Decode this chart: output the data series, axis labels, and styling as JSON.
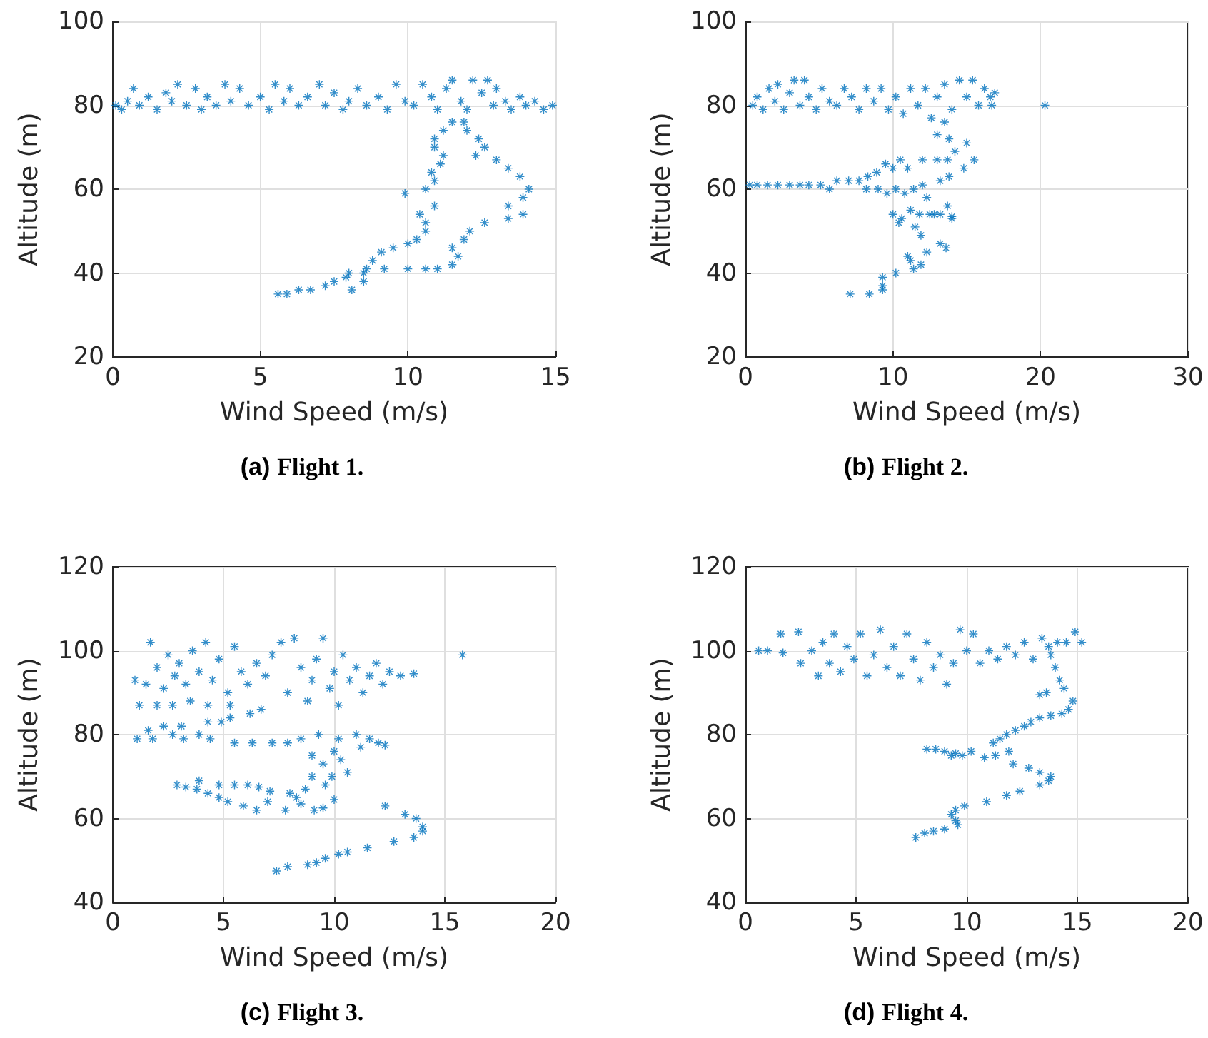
{
  "chart_data": [
    {
      "type": "scatter",
      "title": "(a) Flight 1.",
      "xlabel": "Wind Speed (m/s)",
      "ylabel": "Altitude (m)",
      "xlim": [
        0,
        15
      ],
      "xticks": [
        0,
        5,
        10,
        15
      ],
      "ylim": [
        20,
        100
      ],
      "yticks": [
        20,
        40,
        60,
        80,
        100
      ],
      "grid": true,
      "marker": "star",
      "series": [
        {
          "color": "#0072bd",
          "x": [
            0.1,
            0.3,
            0.5,
            0.7,
            0.9,
            1.2,
            1.5,
            1.8,
            2.0,
            2.2,
            2.5,
            2.8,
            3.0,
            3.2,
            3.5,
            3.8,
            4.0,
            4.3,
            4.6,
            5.0,
            5.3,
            5.5,
            5.8,
            6.0,
            6.3,
            6.6,
            7.0,
            7.2,
            7.5,
            7.8,
            8.0,
            8.3,
            8.6,
            9.0,
            9.3,
            9.6,
            9.9,
            10.2,
            10.5,
            10.8,
            11.0,
            11.3,
            11.5,
            11.8,
            12.0,
            12.2,
            12.5,
            12.7,
            12.9,
            13.0,
            13.3,
            13.5,
            13.8,
            14.0,
            14.3,
            14.6,
            14.9,
            11.9,
            12.0,
            12.4,
            12.6,
            12.3,
            13.0,
            13.4,
            13.8,
            14.1,
            13.9,
            13.4,
            13.9,
            13.4,
            12.6,
            12.1,
            11.9,
            11.5,
            11.7,
            11.5,
            11.0,
            10.6,
            10.0,
            9.2,
            11.5,
            11.2,
            10.9,
            10.9,
            11.2,
            11.1,
            10.8,
            10.9,
            10.6,
            9.9,
            10.9,
            10.4,
            10.6,
            10.6,
            10.3,
            10.0,
            9.5,
            9.1,
            8.8,
            8.6,
            8.5,
            8.5,
            8.1,
            7.9,
            7.5,
            7.2,
            6.7,
            6.3,
            5.9,
            5.6,
            8.0
          ],
          "values": [
            80,
            79,
            81,
            84,
            80,
            82,
            79,
            83,
            81,
            85,
            80,
            84,
            79,
            82,
            80,
            85,
            81,
            84,
            80,
            82,
            79,
            85,
            81,
            84,
            80,
            82,
            85,
            80,
            83,
            79,
            81,
            84,
            80,
            82,
            79,
            85,
            81,
            80,
            85,
            82,
            79,
            84,
            86,
            81,
            79,
            86,
            83,
            86,
            80,
            84,
            81,
            79,
            82,
            80,
            81,
            79,
            80,
            76,
            74,
            72,
            70,
            68,
            67,
            65,
            63,
            60,
            58,
            56,
            54,
            53,
            52,
            50,
            48,
            46,
            44,
            42,
            41,
            41,
            41,
            41,
            76,
            74,
            72,
            70,
            68,
            66,
            64,
            62,
            60,
            59,
            56,
            54,
            52,
            50,
            48,
            47,
            46,
            45,
            43,
            41,
            40,
            38,
            36,
            39,
            38,
            37,
            36,
            36,
            35,
            35,
            40
          ]
        }
      ]
    },
    {
      "type": "scatter",
      "title": "(b) Flight 2.",
      "xlabel": "Wind Speed (m/s)",
      "ylabel": "Altitude (m)",
      "xlim": [
        0,
        30
      ],
      "xticks": [
        0,
        10,
        20,
        30
      ],
      "ylim": [
        20,
        100
      ],
      "yticks": [
        20,
        40,
        60,
        80,
        100
      ],
      "grid": true,
      "marker": "star",
      "series": [
        {
          "color": "#0072bd",
          "x": [
            0.5,
            0.8,
            1.2,
            1.6,
            2.0,
            2.2,
            2.6,
            3.0,
            3.3,
            3.7,
            4.0,
            4.3,
            4.8,
            5.2,
            5.7,
            6.2,
            6.7,
            7.2,
            7.7,
            8.2,
            8.7,
            9.2,
            9.7,
            10.2,
            10.7,
            11.2,
            11.7,
            12.2,
            12.6,
            13.0,
            13.5,
            14.0,
            14.5,
            15.0,
            15.4,
            15.8,
            16.2,
            16.6,
            16.9,
            16.7,
            20.3,
            13.5,
            13.0,
            13.8,
            14.2,
            15.0,
            13.7,
            15.5,
            14.8,
            13.0,
            12.0,
            13.2,
            13.8,
            14.0,
            13.7,
            13.6,
            13.2,
            12.8,
            12.3,
            12.3,
            11.9,
            11.5,
            11.9,
            11.4,
            11.2,
            11.0,
            10.2,
            9.3,
            9.3,
            9.3,
            8.4,
            7.1,
            0.3,
            0.8,
            1.5,
            2.2,
            3.0,
            3.7,
            4.3,
            5.1,
            5.7,
            6.2,
            7.0,
            7.7,
            8.3,
            8.9,
            9.5,
            10.0,
            10.5,
            11.0,
            9.0,
            9.6,
            10.2,
            10.8,
            11.4,
            12.0,
            8.2,
            10.0,
            10.6,
            11.2,
            11.8,
            12.5,
            13.2,
            14.0,
            10.4
          ],
          "values": [
            80,
            82,
            79,
            84,
            81,
            85,
            79,
            83,
            86,
            80,
            86,
            82,
            79,
            84,
            81,
            80,
            84,
            82,
            79,
            84,
            81,
            84,
            79,
            82,
            78,
            84,
            80,
            84,
            77,
            82,
            85,
            79,
            86,
            82,
            86,
            80,
            84,
            82,
            83,
            80,
            80,
            76,
            73,
            72,
            69,
            71,
            67,
            67,
            65,
            67,
            67,
            62,
            63,
            53,
            56,
            46,
            47,
            54,
            58,
            45,
            49,
            51,
            42,
            41,
            43,
            44,
            40,
            39,
            37,
            36,
            35,
            35,
            61,
            61,
            61,
            61,
            61,
            61,
            61,
            61,
            60,
            62,
            62,
            62,
            63,
            64,
            66,
            65,
            67,
            65,
            60,
            59,
            60,
            59,
            60,
            61,
            60,
            54,
            53,
            55,
            54,
            54,
            54,
            53.5,
            52
          ]
        }
      ]
    },
    {
      "type": "scatter",
      "title": "(c) Flight 3.",
      "xlabel": "Wind Speed (m/s)",
      "ylabel": "Altitude (m)",
      "xlim": [
        0,
        20
      ],
      "xticks": [
        0,
        5,
        10,
        15,
        20
      ],
      "ylim": [
        40,
        120
      ],
      "yticks": [
        40,
        60,
        80,
        100,
        120
      ],
      "grid": true,
      "marker": "star",
      "series": [
        {
          "color": "#0072bd",
          "x": [
            1.0,
            1.5,
            1.7,
            2.0,
            2.3,
            2.5,
            2.8,
            3.0,
            3.3,
            3.6,
            3.9,
            4.2,
            4.5,
            4.8,
            5.2,
            5.5,
            5.8,
            6.1,
            6.5,
            6.9,
            7.2,
            7.6,
            7.9,
            8.2,
            8.5,
            8.8,
            9.0,
            9.2,
            9.5,
            9.8,
            10.0,
            10.2,
            10.4,
            10.7,
            11.0,
            11.3,
            11.6,
            11.9,
            12.2,
            12.5,
            13.0,
            13.6,
            15.8,
            1.2,
            2.0,
            2.7,
            3.5,
            4.3,
            5.3,
            6.2,
            6.7,
            1.6,
            2.3,
            3.1,
            4.3,
            4.9,
            5.3,
            1.1,
            1.8,
            2.7,
            3.2,
            3.9,
            4.4,
            5.5,
            6.3,
            7.2,
            7.9,
            8.5,
            9.3,
            10.2,
            11.0,
            11.6,
            12.0,
            12.3,
            11.2,
            9.0,
            9.5,
            10.0,
            10.3,
            10.6,
            9.9,
            9.0,
            9.6,
            2.9,
            3.3,
            3.8,
            4.3,
            4.8,
            5.2,
            3.9,
            4.8,
            5.5,
            6.1,
            6.6,
            7.1,
            7.0,
            5.9,
            6.5,
            7.8,
            8.3,
            8.7,
            8.0,
            8.5,
            9.1,
            9.5,
            10.0,
            12.3,
            13.2,
            13.7,
            14.0,
            14.0,
            13.6,
            12.7,
            11.5,
            10.6,
            10.2,
            9.6,
            9.2,
            8.8,
            7.9,
            7.4
          ],
          "values": [
            93,
            92,
            102,
            96,
            91,
            99,
            94,
            97,
            92,
            100,
            95,
            102,
            93,
            98,
            90,
            101,
            95,
            92,
            97,
            94,
            99,
            102,
            90,
            103,
            96,
            88,
            93,
            98,
            103,
            91,
            95,
            87,
            99,
            93,
            96,
            90,
            94,
            97,
            92,
            95,
            94,
            94.5,
            99,
            87,
            87,
            87,
            88,
            87,
            87,
            85,
            86,
            81,
            82,
            82,
            83,
            83,
            84,
            79,
            79,
            80,
            79,
            80,
            79,
            78,
            78,
            78,
            78,
            79,
            80,
            79,
            80,
            79,
            78,
            77.5,
            77,
            75,
            73,
            76,
            74,
            71,
            70,
            70,
            68,
            68,
            67.5,
            67,
            66,
            65,
            64,
            69,
            68,
            68,
            68,
            67.5,
            66.5,
            64,
            63,
            62,
            62,
            65,
            67,
            66,
            63.5,
            62,
            62.5,
            64.5,
            63,
            61,
            60,
            58,
            57,
            55.5,
            54.5,
            53,
            52,
            51.5,
            50.5,
            49.5,
            49,
            48.5,
            47.5
          ]
        }
      ]
    },
    {
      "type": "scatter",
      "title": "(d) Flight 4.",
      "xlabel": "Wind Speed (m/s)",
      "ylabel": "Altitude (m)",
      "xlim": [
        0,
        20
      ],
      "xticks": [
        0,
        5,
        10,
        15,
        20
      ],
      "ylim": [
        40,
        120
      ],
      "yticks": [
        40,
        60,
        80,
        100,
        120
      ],
      "grid": true,
      "marker": "star",
      "series": [
        {
          "color": "#0072bd",
          "x": [
            0.6,
            1.0,
            1.6,
            1.7,
            2.4,
            2.5,
            3.0,
            3.3,
            3.5,
            3.8,
            4.0,
            4.3,
            4.6,
            4.9,
            5.2,
            5.5,
            5.8,
            6.1,
            6.4,
            6.7,
            7.0,
            7.3,
            7.6,
            7.9,
            8.2,
            8.5,
            8.8,
            9.1,
            9.4,
            9.7,
            10.0,
            10.3,
            10.6,
            11.0,
            11.4,
            11.8,
            12.2,
            12.6,
            13.0,
            13.4,
            13.7,
            14.1,
            14.5,
            14.9,
            15.2,
            13.8,
            14.0,
            14.2,
            14.4,
            13.6,
            13.3,
            14.8,
            14.6,
            14.3,
            13.8,
            13.3,
            12.9,
            12.6,
            12.2,
            11.8,
            11.5,
            11.2,
            11.9,
            11.3,
            10.8,
            8.2,
            8.6,
            9.0,
            9.5,
            9.8,
            9.3,
            10.2,
            12.1,
            12.8,
            13.3,
            13.8,
            13.7,
            13.3,
            12.4,
            11.8,
            10.9,
            9.9,
            9.5,
            9.3,
            9.5,
            9.6,
            9.0,
            8.5,
            8.1,
            7.7
          ],
          "values": [
            100,
            100,
            104,
            99.5,
            104.5,
            97,
            100,
            94,
            102,
            97,
            104,
            95,
            101,
            98,
            104,
            94,
            99,
            105,
            96,
            101,
            94,
            104,
            98,
            93,
            102,
            96,
            99,
            92,
            97,
            105,
            100,
            104,
            97,
            100,
            98,
            101,
            99,
            102,
            98,
            103,
            101,
            102,
            102,
            104.5,
            102,
            99,
            96,
            93,
            91,
            90,
            89.5,
            88,
            86,
            85,
            84.5,
            84,
            83,
            82,
            81,
            80,
            79,
            78,
            76,
            75,
            74.5,
            76.5,
            76.5,
            76,
            75.5,
            75,
            75,
            76,
            73,
            72,
            71,
            70,
            69,
            68,
            66.5,
            65.5,
            64,
            63,
            62,
            61,
            59.5,
            58.5,
            57.5,
            57,
            56.5,
            55.5
          ]
        }
      ]
    }
  ]
}
